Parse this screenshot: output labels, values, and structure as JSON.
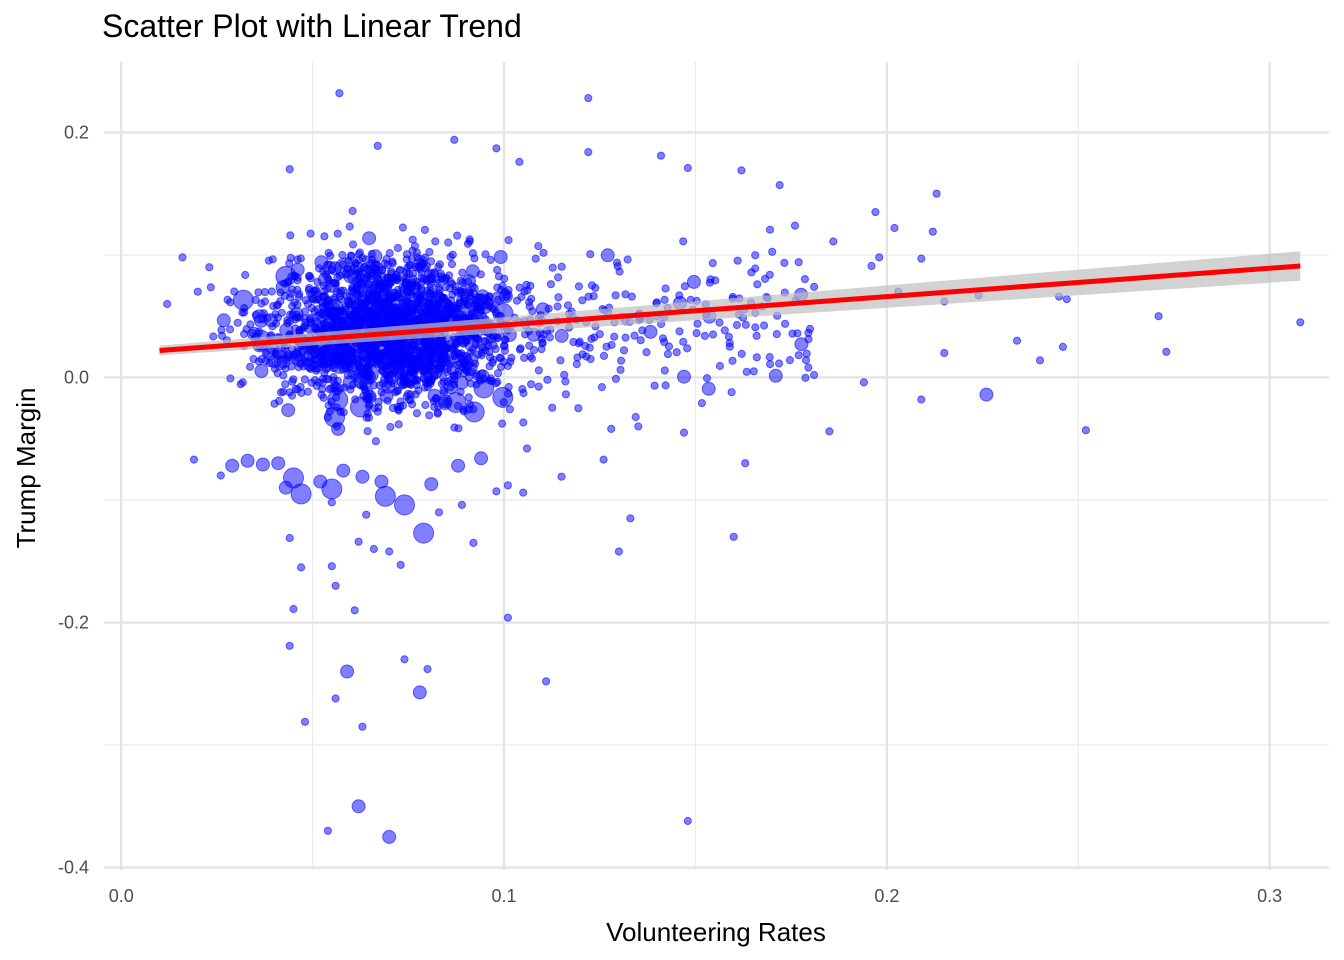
{
  "chart_data": {
    "type": "scatter",
    "title": "Scatter Plot with Linear Trend",
    "xlabel": "Volunteering Rates",
    "ylabel": "Trump Margin",
    "xlim": [
      -0.0045,
      0.3155
    ],
    "ylim": [
      -0.402,
      0.2575
    ],
    "x_ticks": [
      {
        "value": 0.0,
        "label": "0.0"
      },
      {
        "value": 0.1,
        "label": "0.1"
      },
      {
        "value": 0.2,
        "label": "0.2"
      },
      {
        "value": 0.3,
        "label": "0.3"
      }
    ],
    "y_ticks": [
      {
        "value": -0.4,
        "label": "-0.4"
      },
      {
        "value": -0.2,
        "label": "-0.2"
      },
      {
        "value": 0.0,
        "label": "0.0"
      },
      {
        "value": 0.2,
        "label": "0.2"
      }
    ],
    "grid": true,
    "point_color": "#0000ff",
    "point_opacity": 0.5,
    "trend": {
      "color": "#ff0000",
      "band_color": "#bfbfbf",
      "x": [
        0.01,
        0.308
      ],
      "y": [
        0.022,
        0.091
      ],
      "se": [
        0.004,
        0.012
      ]
    },
    "points": [
      [
        0.057,
        0.232,
        1
      ],
      [
        0.122,
        0.228,
        1
      ],
      [
        0.087,
        0.194,
        1
      ],
      [
        0.122,
        0.184,
        1
      ],
      [
        0.067,
        0.189,
        1
      ],
      [
        0.141,
        0.181,
        1
      ],
      [
        0.148,
        0.171,
        1
      ],
      [
        0.162,
        0.169,
        1
      ],
      [
        0.044,
        0.17,
        1
      ],
      [
        0.172,
        0.157,
        1
      ],
      [
        0.213,
        0.15,
        1
      ],
      [
        0.098,
        0.187,
        1
      ],
      [
        0.104,
        0.176,
        1
      ],
      [
        0.197,
        0.135,
        1
      ],
      [
        0.176,
        0.124,
        1
      ],
      [
        0.186,
        0.111,
        1
      ],
      [
        0.202,
        0.122,
        1
      ],
      [
        0.212,
        0.119,
        1
      ],
      [
        0.198,
        0.098,
        1
      ],
      [
        0.209,
        0.097,
        1
      ],
      [
        0.196,
        0.091,
        1
      ],
      [
        0.181,
        0.074,
        1
      ],
      [
        0.203,
        0.07,
        1
      ],
      [
        0.215,
        0.062,
        1
      ],
      [
        0.224,
        0.067,
        1
      ],
      [
        0.245,
        0.066,
        1
      ],
      [
        0.247,
        0.064,
        1
      ],
      [
        0.271,
        0.05,
        1
      ],
      [
        0.308,
        0.045,
        1
      ],
      [
        0.234,
        0.03,
        1
      ],
      [
        0.246,
        0.025,
        1
      ],
      [
        0.215,
        0.02,
        1
      ],
      [
        0.273,
        0.021,
        1
      ],
      [
        0.24,
        0.014,
        1
      ],
      [
        0.181,
        0.002,
        1
      ],
      [
        0.194,
        -0.004,
        1
      ],
      [
        0.209,
        -0.018,
        1
      ],
      [
        0.226,
        -0.014,
        2
      ],
      [
        0.252,
        -0.043,
        1
      ],
      [
        0.185,
        -0.044,
        1
      ],
      [
        0.163,
        -0.07,
        1
      ],
      [
        0.16,
        -0.13,
        1
      ],
      [
        0.133,
        -0.115,
        1
      ],
      [
        0.13,
        -0.142,
        1
      ],
      [
        0.147,
        -0.045,
        1
      ],
      [
        0.101,
        -0.196,
        1
      ],
      [
        0.111,
        -0.248,
        1
      ],
      [
        0.148,
        -0.362,
        1
      ],
      [
        0.044,
        -0.131,
        1
      ],
      [
        0.047,
        -0.155,
        1
      ],
      [
        0.045,
        -0.189,
        1
      ],
      [
        0.044,
        -0.219,
        1
      ],
      [
        0.056,
        -0.17,
        1
      ],
      [
        0.061,
        -0.19,
        1
      ],
      [
        0.055,
        -0.154,
        1
      ],
      [
        0.059,
        -0.24,
        2
      ],
      [
        0.056,
        -0.262,
        1
      ],
      [
        0.048,
        -0.281,
        1
      ],
      [
        0.063,
        -0.285,
        1
      ],
      [
        0.062,
        -0.35,
        2
      ],
      [
        0.054,
        -0.37,
        1
      ],
      [
        0.07,
        -0.375,
        2
      ],
      [
        0.074,
        -0.23,
        1
      ],
      [
        0.078,
        -0.257,
        2
      ],
      [
        0.08,
        -0.238,
        1
      ],
      [
        0.079,
        -0.127,
        3
      ],
      [
        0.062,
        -0.134,
        1
      ],
      [
        0.066,
        -0.14,
        1
      ],
      [
        0.07,
        -0.142,
        1
      ],
      [
        0.073,
        -0.153,
        1
      ],
      [
        0.092,
        -0.135,
        1
      ],
      [
        0.105,
        -0.094,
        1
      ],
      [
        0.098,
        -0.093,
        1
      ],
      [
        0.101,
        -0.088,
        1
      ],
      [
        0.115,
        -0.081,
        1
      ],
      [
        0.126,
        -0.067,
        1
      ],
      [
        0.128,
        -0.042,
        1
      ],
      [
        0.106,
        -0.058,
        1
      ],
      [
        0.016,
        0.098,
        1
      ],
      [
        0.012,
        0.06,
        1
      ],
      [
        0.023,
        0.09,
        1
      ],
      [
        0.02,
        0.07,
        1
      ],
      [
        0.019,
        -0.067,
        1
      ],
      [
        0.026,
        -0.08,
        1
      ],
      [
        0.029,
        -0.072,
        2
      ],
      [
        0.033,
        -0.068,
        2
      ],
      [
        0.037,
        -0.071,
        2
      ],
      [
        0.041,
        -0.07,
        2
      ],
      [
        0.045,
        -0.082,
        3
      ],
      [
        0.047,
        -0.095,
        3
      ],
      [
        0.043,
        -0.09,
        2
      ],
      [
        0.052,
        -0.085,
        2
      ],
      [
        0.055,
        -0.091,
        3
      ],
      [
        0.058,
        -0.076,
        2
      ],
      [
        0.063,
        -0.081,
        2
      ],
      [
        0.068,
        -0.085,
        2
      ],
      [
        0.069,
        -0.097,
        3
      ],
      [
        0.074,
        -0.104,
        3
      ],
      [
        0.081,
        -0.087,
        2
      ],
      [
        0.088,
        -0.072,
        2
      ],
      [
        0.094,
        -0.066,
        2
      ],
      [
        0.083,
        -0.11,
        1
      ],
      [
        0.089,
        -0.104,
        1
      ],
      [
        0.064,
        -0.112,
        1
      ],
      [
        0.055,
        -0.102,
        1
      ]
    ]
  }
}
